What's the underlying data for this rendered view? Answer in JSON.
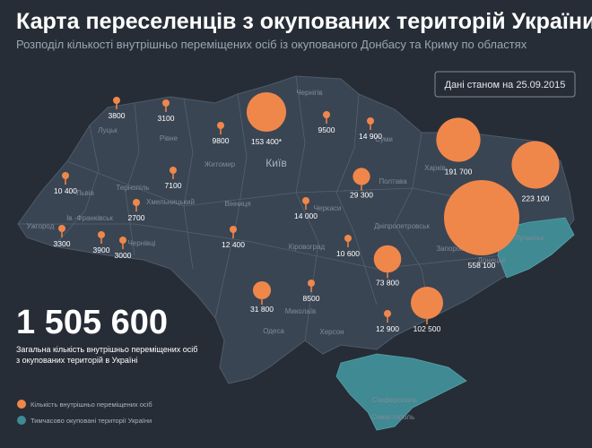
{
  "header": {
    "title": "Карта переселенців з окупованих територій України",
    "subtitle": "Розподіл кількості внутрішньо переміщених осіб із окупованого Донбасу та Криму по областях"
  },
  "date_note": "Дані станом на 25.09.2015",
  "total": {
    "value_text": "1 505 600",
    "caption_lines": [
      "Загальна кількість внутрішньо переміщених осіб",
      "з окупованих територій в Україні"
    ]
  },
  "points": [
    {
      "label": "3800",
      "value": 3800
    },
    {
      "label": "3100",
      "value": 3100
    },
    {
      "label": "9800",
      "value": 9800
    },
    {
      "label": "153 400*",
      "value": 153400
    },
    {
      "label": "9500",
      "value": 9500
    },
    {
      "label": "14 900",
      "value": 14900
    },
    {
      "label": "191 700",
      "value": 191700
    },
    {
      "label": "223 100",
      "value": 223100
    },
    {
      "label": "10 400",
      "value": 10400
    },
    {
      "label": "7100",
      "value": 7100
    },
    {
      "label": "29 300",
      "value": 29300
    },
    {
      "label": "558 100",
      "value": 558100
    },
    {
      "label": "2700",
      "value": 2700
    },
    {
      "label": "14 000",
      "value": 14000
    },
    {
      "label": "3300",
      "value": 3300
    },
    {
      "label": "3900",
      "value": 3900
    },
    {
      "label": "3000",
      "value": 3000
    },
    {
      "label": "12 400",
      "value": 12400
    },
    {
      "label": "10 600",
      "value": 10600
    },
    {
      "label": "73 800",
      "value": 73800
    },
    {
      "label": "8500",
      "value": 8500
    },
    {
      "label": "31 800",
      "value": 31800
    },
    {
      "label": "12 900",
      "value": 12900
    },
    {
      "label": "102 500",
      "value": 102500
    }
  ],
  "cities": [
    "Луцьк",
    "Рівне",
    "Житомир",
    "Київ",
    "Чернігів",
    "Суми",
    "Харків",
    "Полтава",
    "Черкаси",
    "Вінниця",
    "Хмельницький",
    "Тернопіль",
    "Львів",
    "Ів.-Франківськ",
    "Ужгород",
    "Чернівці",
    "Кіровоград",
    "Дніпропетровськ",
    "Запоріжжя",
    "Донецьк",
    "Луганськ",
    "Миколаїв",
    "Одеса",
    "Херсон",
    "Сімферополь",
    "Севастополь"
  ],
  "legend": [
    "Кількість внутрішньо переміщених осіб",
    "Тимчасово окуповані території України"
  ]
}
